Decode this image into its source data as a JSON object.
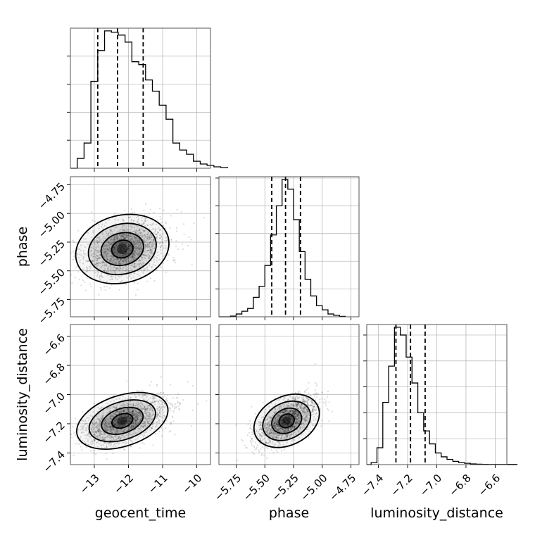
{
  "chart_data": {
    "type": "corner",
    "grid": true,
    "parameters": [
      "geocent_time",
      "phase",
      "luminosity_distance"
    ],
    "axis_labels": {
      "x": [
        "geocent_time",
        "phase",
        "luminosity_distance"
      ],
      "y": [
        "phase",
        "luminosity_distance"
      ]
    },
    "ranges": {
      "geocent_time": [
        -13.7,
        -9.6
      ],
      "phase": [
        -5.9,
        -4.68
      ],
      "luminosity_distance": [
        -7.48,
        -6.52
      ]
    },
    "ticks": {
      "geocent_time": [
        -13,
        -12,
        -11,
        -10
      ],
      "phase": [
        -5.75,
        -5.5,
        -5.25,
        -5.0,
        -4.75
      ],
      "luminosity_distance": [
        -7.4,
        -7.2,
        -7.0,
        -6.8,
        -6.6
      ]
    },
    "tick_labels": {
      "geocent_time": [
        "−13",
        "−12",
        "−11",
        "−10"
      ],
      "phase": [
        "−5.75",
        "−5.50",
        "−5.25",
        "−5.00",
        "−4.75"
      ],
      "luminosity_distance": [
        "−7.4",
        "−7.2",
        "−7.0",
        "−6.8",
        "−6.6"
      ]
    },
    "quantiles": {
      "geocent_time": [
        -12.9,
        -12.32,
        -11.57
      ],
      "phase": [
        -5.44,
        -5.32,
        -5.19
      ],
      "luminosity_distance": [
        -7.28,
        -7.18,
        -7.08
      ]
    },
    "histograms": {
      "geocent_time": {
        "bin_start": -13.5,
        "bin_width": 0.2,
        "counts": [
          7,
          18,
          62,
          84,
          98,
          97,
          95,
          90,
          76,
          74,
          63,
          55,
          45,
          35,
          18,
          13,
          10,
          5,
          3,
          2,
          1,
          0.5
        ]
      },
      "phase": {
        "bin_start": -5.8,
        "bin_width": 0.05,
        "counts": [
          0.5,
          2,
          4,
          6,
          14,
          22,
          37,
          59,
          80,
          99,
          92,
          70,
          47,
          27,
          15,
          8,
          5,
          2,
          1,
          0.3
        ]
      },
      "luminosity_distance": {
        "bin_start": -7.45,
        "bin_width": 0.04,
        "counts": [
          1.5,
          13,
          48,
          76,
          106,
          100,
          83,
          63,
          40,
          26,
          16,
          9,
          6,
          4,
          2.5,
          1.5,
          1,
          0.5,
          0.3,
          0.2,
          0.1,
          0.1,
          0.1,
          0.1,
          0.1
        ]
      }
    },
    "scatter": {
      "color": "#000000",
      "centers": {
        "geocent_time": -12.3,
        "phase": -5.31,
        "luminosity_distance": -7.18
      },
      "sigmas": {
        "geocent_time": 0.6,
        "phase": 0.13,
        "luminosity_distance": 0.085
      }
    },
    "contour_levels": 3
  }
}
